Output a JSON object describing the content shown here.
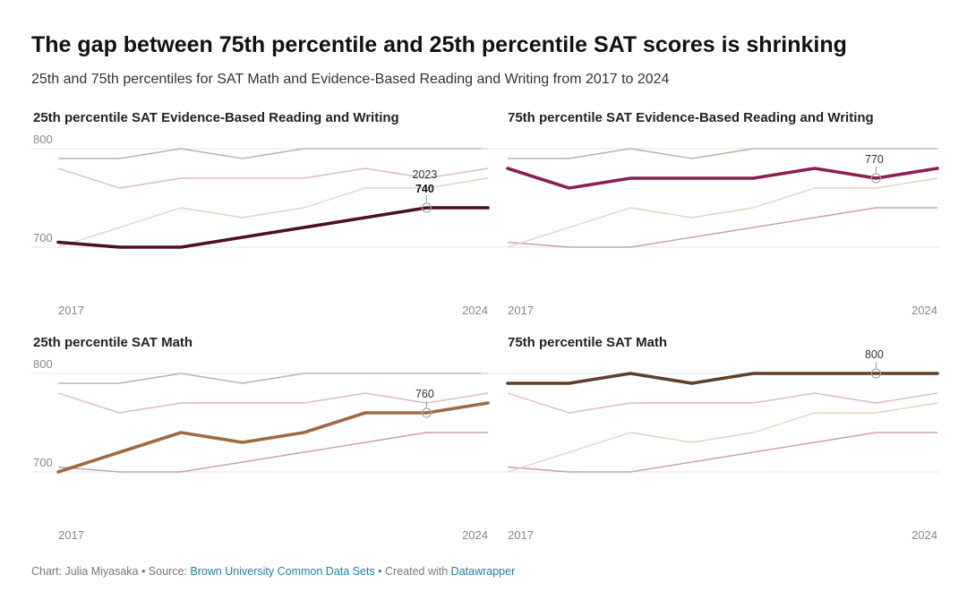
{
  "title": "The gap between 75th percentile and 25th percentile SAT scores is shrinking",
  "subtitle": "25th and 75th percentiles for SAT Math and Evidence-Based Reading and Writing from 2017 to 2024",
  "footer": {
    "credit": "Chart: Julia Miyasaka • Source: ",
    "source_link": "Brown University Common Data Sets",
    "created_text": " • Created with ",
    "tool_link": "Datawrapper",
    "link_color": "#1d81a2"
  },
  "chart_data": [
    {
      "type": "line",
      "title": "25th percentile SAT Evidence-Based Reading and Writing",
      "x": [
        2017,
        2018,
        2019,
        2020,
        2021,
        2022,
        2023,
        2024
      ],
      "y_ticks": [
        700,
        800
      ],
      "x_tick_labels": [
        "2017",
        "2024"
      ],
      "ylim": [
        690,
        810
      ],
      "grid": true,
      "highlight_series": "25th percentile SAT Evidence-Based Reading and Writing",
      "highlight_color": "#4d0f25",
      "annotation": {
        "x": 2023,
        "y": 740,
        "label_year": "2023",
        "label_value": "740"
      }
    },
    {
      "type": "line",
      "title": "75th percentile SAT Evidence-Based Reading and Writing",
      "x": [
        2017,
        2018,
        2019,
        2020,
        2021,
        2022,
        2023,
        2024
      ],
      "y_ticks": [
        700,
        800
      ],
      "x_tick_labels": [
        "2017",
        "2024"
      ],
      "ylim": [
        690,
        810
      ],
      "grid": true,
      "highlight_series": "75th percentile SAT Evidence-Based Reading and Writing",
      "highlight_color": "#8c1f51",
      "annotation": {
        "x": 2023,
        "y": 770,
        "label_value": "770"
      }
    },
    {
      "type": "line",
      "title": "25th percentile SAT Math",
      "x": [
        2017,
        2018,
        2019,
        2020,
        2021,
        2022,
        2023,
        2024
      ],
      "y_ticks": [
        700,
        800
      ],
      "x_tick_labels": [
        "2017",
        "2024"
      ],
      "ylim": [
        690,
        810
      ],
      "grid": true,
      "highlight_series": "25th percentile SAT Math",
      "highlight_color": "#9e6a42",
      "annotation": {
        "x": 2023,
        "y": 760,
        "label_value": "760"
      }
    },
    {
      "type": "line",
      "title": "75th percentile SAT Math",
      "x": [
        2017,
        2018,
        2019,
        2020,
        2021,
        2022,
        2023,
        2024
      ],
      "y_ticks": [
        700,
        800
      ],
      "x_tick_labels": [
        "2017",
        "2024"
      ],
      "ylim": [
        690,
        810
      ],
      "grid": true,
      "highlight_series": "75th percentile SAT Math",
      "highlight_color": "#5e4028",
      "annotation": {
        "x": 2023,
        "y": 800,
        "label_value": "800"
      }
    }
  ],
  "series_data": [
    {
      "name": "25th percentile SAT Evidence-Based Reading and Writing",
      "values": [
        705,
        700,
        700,
        710,
        720,
        730,
        740,
        740
      ],
      "muted_color": "#c8a0ac"
    },
    {
      "name": "75th percentile SAT Evidence-Based Reading and Writing",
      "values": [
        780,
        760,
        770,
        770,
        770,
        780,
        770,
        780
      ],
      "muted_color": "#ddb8c6"
    },
    {
      "name": "25th percentile SAT Math",
      "values": [
        700,
        720,
        740,
        730,
        740,
        760,
        760,
        770
      ],
      "muted_color": "#e0d4c4"
    },
    {
      "name": "75th percentile SAT Math",
      "values": [
        790,
        790,
        800,
        790,
        800,
        800,
        800,
        800
      ],
      "muted_color": "#bcb3a8"
    }
  ]
}
